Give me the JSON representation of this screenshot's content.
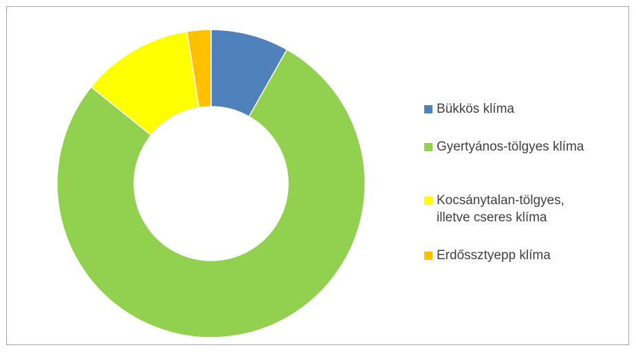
{
  "chart_data": {
    "type": "donut",
    "categories": [
      "Bükkös klíma",
      "Gyertyános-tölgyes klíma",
      "Kocsánytalan-tölgyes, illetve cseres klíma",
      "Erdőssztyepp klíma"
    ],
    "values": [
      8.2,
      77.6,
      11.7,
      2.5
    ],
    "colors": [
      "#4f81bd",
      "#92d050",
      "#ffff00",
      "#ffc000"
    ],
    "legend": "right"
  }
}
